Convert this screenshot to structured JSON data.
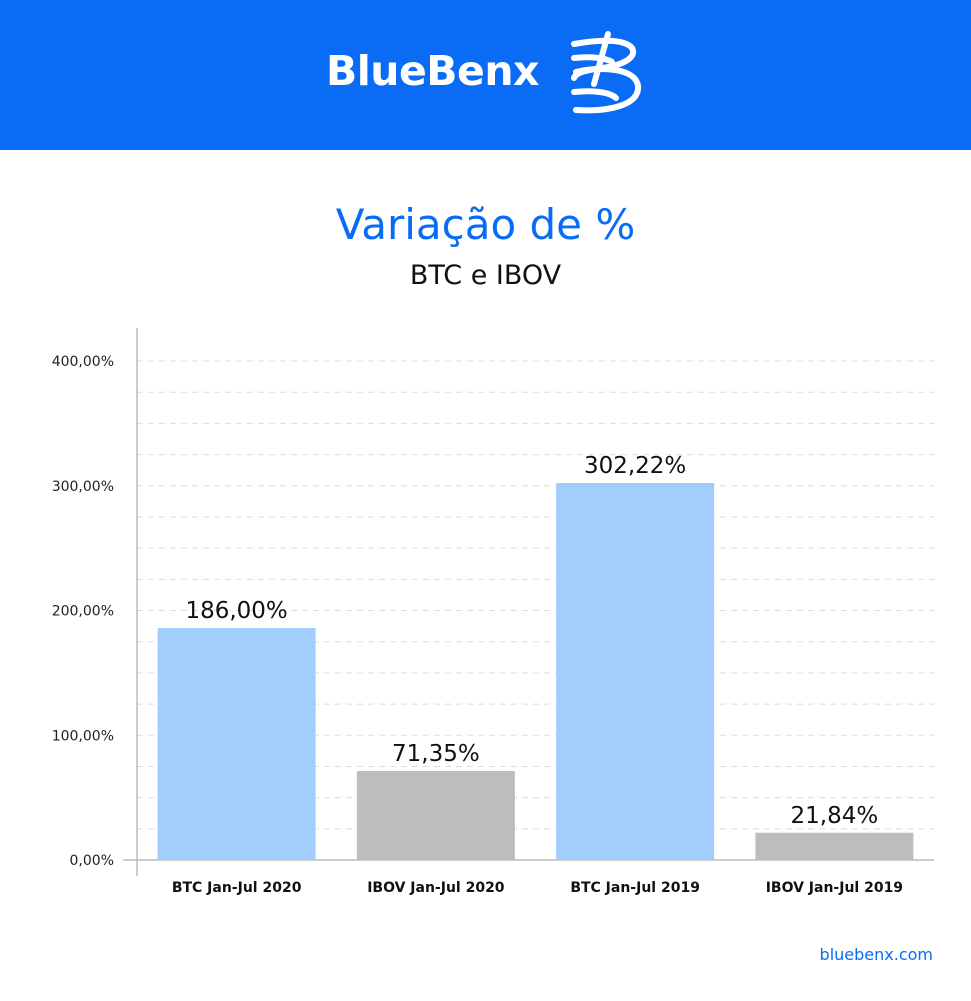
{
  "brand": {
    "name": "BlueBenx",
    "logo_icon": "bluebenx-b-logo-icon"
  },
  "colors": {
    "banner": "#0a6cf5",
    "title": "#0a6cf5",
    "btc_bar": "#a3cdfd",
    "ibov_bar": "#bdbdbd",
    "grid": "#dddddd",
    "axis": "#bbbbbb"
  },
  "footer": {
    "website": "bluebenx.com"
  },
  "chart_data": {
    "type": "bar",
    "title": "Variação de %",
    "subtitle": "BTC e IBOV",
    "categories": [
      "BTC Jan-Jul 2020",
      "IBOV Jan-Jul 2020",
      "BTC Jan-Jul 2019",
      "IBOV Jan-Jul 2019"
    ],
    "values": [
      186.0,
      71.35,
      302.22,
      21.84
    ],
    "value_labels": [
      "186,00%",
      "71,35%",
      "302,22%",
      "21,84%"
    ],
    "bar_colors": [
      "#a3cdfd",
      "#bdbdbd",
      "#a3cdfd",
      "#bdbdbd"
    ],
    "yticks": [
      0,
      100,
      200,
      300,
      400
    ],
    "ytick_labels": [
      "0,00%",
      "100,00%",
      "200,00%",
      "300,00%",
      "400,00%"
    ],
    "ylim": [
      0,
      400
    ],
    "grid": true,
    "legend": false
  }
}
